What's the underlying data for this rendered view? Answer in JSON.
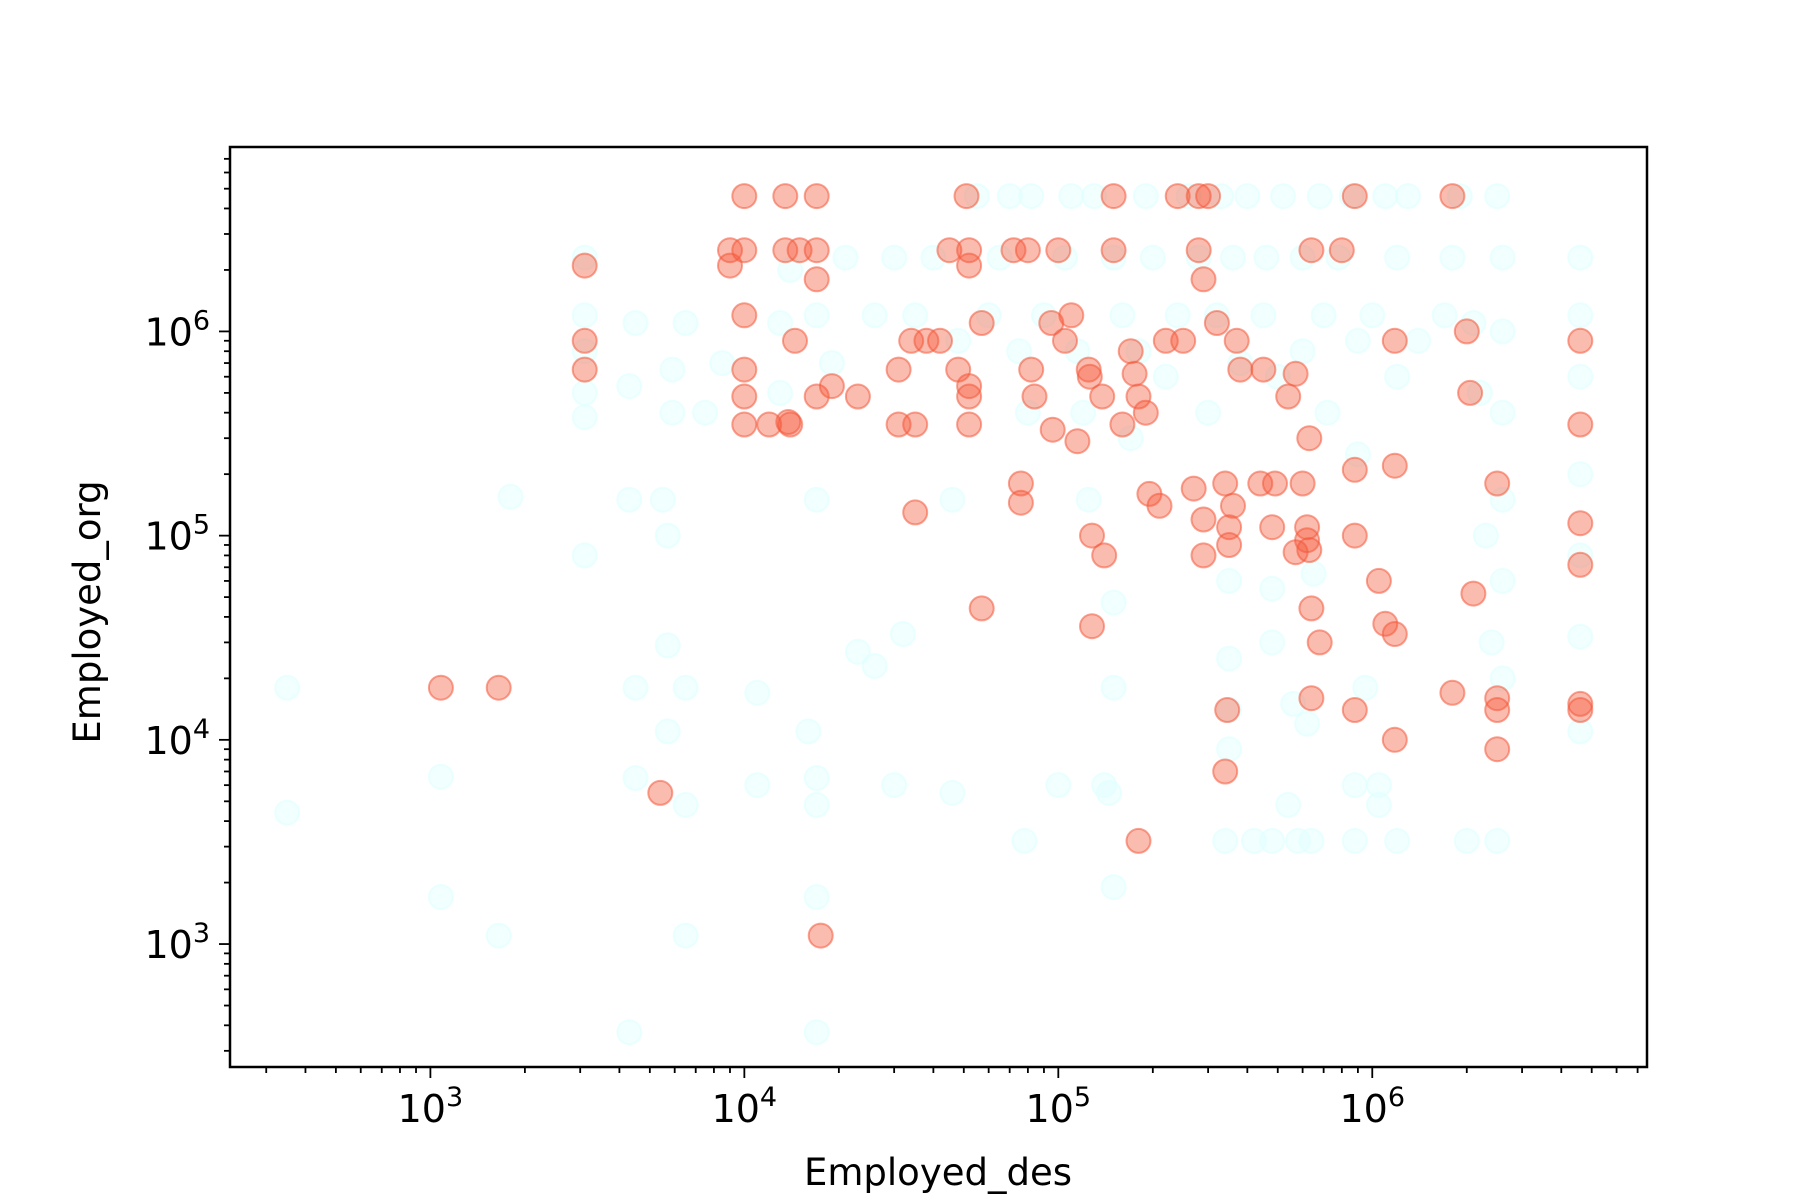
{
  "chart_data": {
    "type": "scatter",
    "title": "",
    "xlabel": "Employed_des",
    "ylabel": "Employed_org",
    "xscale": "log",
    "yscale": "log",
    "xlim": [
      230,
      7500000
    ],
    "ylim": [
      250,
      8000000
    ],
    "grid": false,
    "legend": "none",
    "x_ticks": [
      {
        "value": 1000,
        "base": "10",
        "exp": "3"
      },
      {
        "value": 10000,
        "base": "10",
        "exp": "4"
      },
      {
        "value": 100000,
        "base": "10",
        "exp": "5"
      },
      {
        "value": 1000000,
        "base": "10",
        "exp": "6"
      }
    ],
    "y_ticks": [
      {
        "value": 1000,
        "base": "10",
        "exp": "3"
      },
      {
        "value": 10000,
        "base": "10",
        "exp": "4"
      },
      {
        "value": 100000,
        "base": "10",
        "exp": "5"
      },
      {
        "value": 1000000,
        "base": "10",
        "exp": "6"
      }
    ],
    "series": [
      {
        "color": "#e0ffff",
        "alpha": 0.45,
        "points": [
          [
            350,
            18000
          ],
          [
            350,
            4400
          ],
          [
            1080,
            6600
          ],
          [
            1080,
            1700
          ],
          [
            1650,
            1100
          ],
          [
            1800,
            155000
          ],
          [
            3100,
            2300000
          ],
          [
            3100,
            1200000
          ],
          [
            3100,
            800000
          ],
          [
            3100,
            500000
          ],
          [
            3100,
            380000
          ],
          [
            3100,
            80000
          ],
          [
            4300,
            150000
          ],
          [
            4300,
            540000
          ],
          [
            4500,
            1100000
          ],
          [
            4500,
            18000
          ],
          [
            4500,
            6500
          ],
          [
            4300,
            370
          ],
          [
            5500,
            150000
          ],
          [
            5700,
            100000
          ],
          [
            5700,
            29000
          ],
          [
            5700,
            11000
          ],
          [
            5900,
            650000
          ],
          [
            5900,
            400000
          ],
          [
            6500,
            1100000
          ],
          [
            6500,
            18000
          ],
          [
            6500,
            4800
          ],
          [
            6500,
            1100
          ],
          [
            7500,
            400000
          ],
          [
            8500,
            700000
          ],
          [
            11000,
            17000
          ],
          [
            11000,
            6000
          ],
          [
            13000,
            500000
          ],
          [
            13000,
            1100000
          ],
          [
            14000,
            2000000
          ],
          [
            16000,
            11000
          ],
          [
            17000,
            6500
          ],
          [
            17000,
            4800
          ],
          [
            17000,
            1700
          ],
          [
            17000,
            370
          ],
          [
            17000,
            150000
          ],
          [
            17000,
            1200000
          ],
          [
            19000,
            700000
          ],
          [
            21000,
            2300000
          ],
          [
            23000,
            27000
          ],
          [
            26000,
            23000
          ],
          [
            26000,
            1200000
          ],
          [
            30000,
            2300000
          ],
          [
            30000,
            6000
          ],
          [
            32000,
            33000
          ],
          [
            35000,
            1200000
          ],
          [
            40000,
            2300000
          ],
          [
            46000,
            150000
          ],
          [
            46000,
            5500
          ],
          [
            48000,
            900000
          ],
          [
            55000,
            4600000
          ],
          [
            60000,
            1200000
          ],
          [
            65000,
            2300000
          ],
          [
            70000,
            4600000
          ],
          [
            75000,
            800000
          ],
          [
            78000,
            3200
          ],
          [
            80000,
            400000
          ],
          [
            82000,
            4600000
          ],
          [
            90000,
            1200000
          ],
          [
            100000,
            6000
          ],
          [
            105000,
            2300000
          ],
          [
            110000,
            4600000
          ],
          [
            115000,
            800000
          ],
          [
            120000,
            400000
          ],
          [
            125000,
            150000
          ],
          [
            130000,
            4600000
          ],
          [
            140000,
            6000
          ],
          [
            145000,
            5500
          ],
          [
            150000,
            2300000
          ],
          [
            150000,
            47000
          ],
          [
            150000,
            18000
          ],
          [
            150000,
            1900
          ],
          [
            160000,
            1200000
          ],
          [
            170000,
            300000
          ],
          [
            180000,
            800000
          ],
          [
            190000,
            4600000
          ],
          [
            200000,
            2300000
          ],
          [
            220000,
            600000
          ],
          [
            240000,
            1200000
          ],
          [
            260000,
            4600000
          ],
          [
            280000,
            2300000
          ],
          [
            300000,
            400000
          ],
          [
            320000,
            1200000
          ],
          [
            330000,
            4600000
          ],
          [
            340000,
            3200
          ],
          [
            350000,
            25000
          ],
          [
            350000,
            14000
          ],
          [
            350000,
            9000
          ],
          [
            350000,
            60000
          ],
          [
            360000,
            2300000
          ],
          [
            380000,
            700000
          ],
          [
            400000,
            4600000
          ],
          [
            420000,
            3200
          ],
          [
            450000,
            1200000
          ],
          [
            460000,
            2300000
          ],
          [
            480000,
            30000
          ],
          [
            480000,
            55000
          ],
          [
            480000,
            3200
          ],
          [
            500000,
            600000
          ],
          [
            520000,
            4600000
          ],
          [
            540000,
            4800
          ],
          [
            560000,
            15000
          ],
          [
            580000,
            3200
          ],
          [
            600000,
            2300000
          ],
          [
            600000,
            800000
          ],
          [
            620000,
            12000
          ],
          [
            640000,
            3200
          ],
          [
            650000,
            65000
          ],
          [
            680000,
            4600000
          ],
          [
            700000,
            1200000
          ],
          [
            720000,
            400000
          ],
          [
            780000,
            2300000
          ],
          [
            860000,
            4600000
          ],
          [
            880000,
            3200
          ],
          [
            880000,
            6000
          ],
          [
            900000,
            900000
          ],
          [
            900000,
            250000
          ],
          [
            950000,
            18000
          ],
          [
            1000000,
            1200000
          ],
          [
            1050000,
            6000
          ],
          [
            1050000,
            4800
          ],
          [
            1100000,
            4600000
          ],
          [
            1200000,
            2300000
          ],
          [
            1200000,
            3200
          ],
          [
            1200000,
            600000
          ],
          [
            1300000,
            4600000
          ],
          [
            1400000,
            900000
          ],
          [
            1700000,
            1200000
          ],
          [
            1800000,
            2300000
          ],
          [
            1900000,
            4600000
          ],
          [
            2000000,
            3200
          ],
          [
            2100000,
            1100000
          ],
          [
            2200000,
            500000
          ],
          [
            2300000,
            100000
          ],
          [
            2400000,
            30000
          ],
          [
            2500000,
            4600000
          ],
          [
            2500000,
            3200
          ],
          [
            2600000,
            2300000
          ],
          [
            2600000,
            1000000
          ],
          [
            2600000,
            400000
          ],
          [
            2600000,
            150000
          ],
          [
            2600000,
            60000
          ],
          [
            2600000,
            20000
          ],
          [
            4600000,
            2300000
          ],
          [
            4600000,
            1200000
          ],
          [
            4600000,
            600000
          ],
          [
            4600000,
            200000
          ],
          [
            4600000,
            80000
          ],
          [
            4600000,
            32000
          ],
          [
            4600000,
            11000
          ]
        ]
      },
      {
        "color": "#f4573a",
        "alpha": 0.4,
        "points": [
          [
            1080,
            18000
          ],
          [
            1650,
            18000
          ],
          [
            3100,
            2100000
          ],
          [
            3100,
            900000
          ],
          [
            3100,
            650000
          ],
          [
            5400,
            5500
          ],
          [
            9000,
            2100000
          ],
          [
            9000,
            2500000
          ],
          [
            10000,
            4600000
          ],
          [
            10000,
            2500000
          ],
          [
            10000,
            1200000
          ],
          [
            10000,
            650000
          ],
          [
            10000,
            480000
          ],
          [
            10000,
            350000
          ],
          [
            12000,
            350000
          ],
          [
            13500,
            4600000
          ],
          [
            13500,
            2500000
          ],
          [
            13800,
            360000
          ],
          [
            14000,
            350000
          ],
          [
            14500,
            900000
          ],
          [
            15000,
            2500000
          ],
          [
            17000,
            4600000
          ],
          [
            17000,
            2500000
          ],
          [
            17000,
            1800000
          ],
          [
            17000,
            480000
          ],
          [
            17500,
            1100
          ],
          [
            19000,
            540000
          ],
          [
            23000,
            480000
          ],
          [
            31000,
            650000
          ],
          [
            31000,
            350000
          ],
          [
            34000,
            900000
          ],
          [
            35000,
            350000
          ],
          [
            35000,
            130000
          ],
          [
            38000,
            900000
          ],
          [
            42000,
            900000
          ],
          [
            45000,
            2500000
          ],
          [
            48000,
            650000
          ],
          [
            51000,
            4600000
          ],
          [
            52000,
            2500000
          ],
          [
            52000,
            2100000
          ],
          [
            52000,
            540000
          ],
          [
            52000,
            480000
          ],
          [
            52000,
            350000
          ],
          [
            57000,
            1100000
          ],
          [
            57000,
            44000
          ],
          [
            72000,
            2500000
          ],
          [
            76000,
            180000
          ],
          [
            76000,
            145000
          ],
          [
            80000,
            2500000
          ],
          [
            82000,
            650000
          ],
          [
            84000,
            480000
          ],
          [
            95000,
            1100000
          ],
          [
            96000,
            330000
          ],
          [
            100000,
            2500000
          ],
          [
            105000,
            900000
          ],
          [
            110000,
            1200000
          ],
          [
            115000,
            290000
          ],
          [
            125000,
            650000
          ],
          [
            126000,
            600000
          ],
          [
            128000,
            100000
          ],
          [
            128000,
            36000
          ],
          [
            138000,
            480000
          ],
          [
            140000,
            80000
          ],
          [
            150000,
            4600000
          ],
          [
            150000,
            2500000
          ],
          [
            160000,
            350000
          ],
          [
            170000,
            800000
          ],
          [
            175000,
            620000
          ],
          [
            180000,
            480000
          ],
          [
            180000,
            3200
          ],
          [
            190000,
            400000
          ],
          [
            195000,
            160000
          ],
          [
            210000,
            140000
          ],
          [
            220000,
            900000
          ],
          [
            240000,
            4600000
          ],
          [
            250000,
            900000
          ],
          [
            270000,
            170000
          ],
          [
            280000,
            4600000
          ],
          [
            280000,
            2500000
          ],
          [
            290000,
            1800000
          ],
          [
            290000,
            120000
          ],
          [
            290000,
            80000
          ],
          [
            300000,
            4600000
          ],
          [
            320000,
            1100000
          ],
          [
            340000,
            180000
          ],
          [
            340000,
            7000
          ],
          [
            345000,
            14000
          ],
          [
            350000,
            110000
          ],
          [
            350000,
            90000
          ],
          [
            360000,
            140000
          ],
          [
            370000,
            900000
          ],
          [
            380000,
            650000
          ],
          [
            440000,
            180000
          ],
          [
            450000,
            650000
          ],
          [
            480000,
            110000
          ],
          [
            490000,
            180000
          ],
          [
            540000,
            480000
          ],
          [
            570000,
            620000
          ],
          [
            570000,
            83000
          ],
          [
            600000,
            180000
          ],
          [
            620000,
            110000
          ],
          [
            620000,
            95000
          ],
          [
            630000,
            300000
          ],
          [
            630000,
            85000
          ],
          [
            640000,
            2500000
          ],
          [
            640000,
            44000
          ],
          [
            640000,
            16000
          ],
          [
            680000,
            30000
          ],
          [
            800000,
            2500000
          ],
          [
            880000,
            4600000
          ],
          [
            880000,
            210000
          ],
          [
            880000,
            100000
          ],
          [
            880000,
            14000
          ],
          [
            1050000,
            60000
          ],
          [
            1100000,
            37000
          ],
          [
            1180000,
            220000
          ],
          [
            1180000,
            900000
          ],
          [
            1180000,
            10000
          ],
          [
            1180000,
            33000
          ],
          [
            1800000,
            4600000
          ],
          [
            1800000,
            17000
          ],
          [
            2000000,
            1000000
          ],
          [
            2050000,
            500000
          ],
          [
            2100000,
            52000
          ],
          [
            2500000,
            180000
          ],
          [
            2500000,
            16000
          ],
          [
            2500000,
            14000
          ],
          [
            2500000,
            9000
          ],
          [
            4600000,
            900000
          ],
          [
            4600000,
            350000
          ],
          [
            4600000,
            115000
          ],
          [
            4600000,
            72000
          ],
          [
            4600000,
            15000
          ],
          [
            4600000,
            14000
          ]
        ]
      }
    ]
  }
}
